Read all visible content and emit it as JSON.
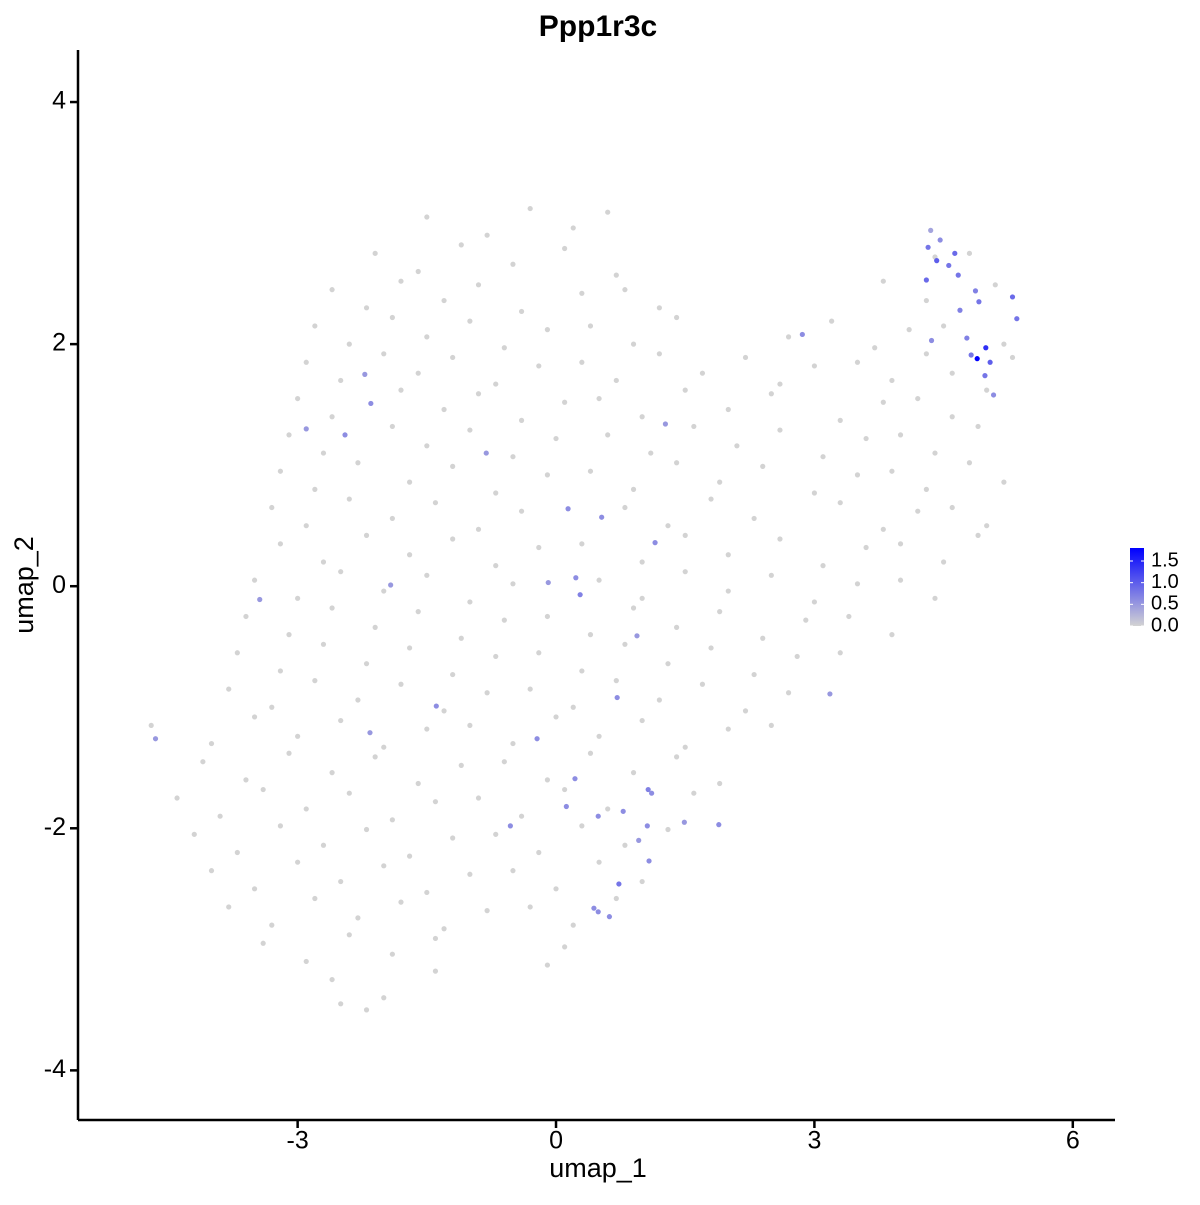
{
  "chart_data": {
    "type": "scatter",
    "title": "Ppp1r3c",
    "xlabel": "umap_1",
    "ylabel": "umap_2",
    "xlim": [
      -5.55,
      6.49
    ],
    "ylim": [
      -4.41,
      4.43
    ],
    "xticks": [
      -3,
      0,
      3,
      6
    ],
    "yticks": [
      -4,
      -2,
      0,
      2,
      4
    ],
    "color_low": "#d3d3d3",
    "color_high": "#0000ff",
    "color_lim": [
      0,
      1.8
    ],
    "color_ticks": [
      {
        "value": 0,
        "label": "0.0"
      },
      {
        "value": 0.5,
        "label": "0.5"
      },
      {
        "value": 1,
        "label": "1.0"
      },
      {
        "value": 1.5,
        "label": "1.5"
      }
    ],
    "x": [
      -1.5,
      -0.8,
      -0.3,
      0.2,
      0.6,
      -2.1,
      -1.6,
      -1.1,
      -0.5,
      0.1,
      0.7,
      4.4,
      4.8,
      -2.6,
      -2.2,
      -1.8,
      -1.3,
      -0.9,
      -0.4,
      0.3,
      0.8,
      1.2,
      3.8,
      4.3,
      5.1,
      -2.8,
      -2.4,
      -1.9,
      -1.5,
      -1.0,
      -0.6,
      -0.1,
      0.4,
      0.9,
      1.4,
      2.7,
      3.2,
      3.7,
      4.1,
      4.5,
      5.2,
      -2.9,
      -2.5,
      -2.0,
      -1.6,
      -1.2,
      -0.7,
      -0.2,
      0.3,
      0.7,
      1.2,
      1.7,
      2.2,
      2.6,
      3.0,
      3.5,
      3.9,
      4.3,
      4.6,
      5.3,
      -3.0,
      -2.6,
      -1.8,
      -1.3,
      -0.9,
      -0.4,
      0.1,
      0.5,
      1.0,
      1.5,
      2.0,
      2.5,
      3.3,
      3.8,
      4.2,
      4.6,
      5.0,
      -3.1,
      -2.7,
      -1.9,
      -1.5,
      -1.0,
      -0.5,
      0.0,
      0.6,
      1.1,
      1.6,
      2.1,
      2.6,
      3.1,
      3.6,
      4.0,
      4.4,
      4.9,
      -3.2,
      -2.8,
      -2.3,
      -1.7,
      -1.2,
      -0.7,
      -0.1,
      0.4,
      0.9,
      1.4,
      1.9,
      2.4,
      3.0,
      3.5,
      3.9,
      4.3,
      4.8,
      5.2,
      -3.3,
      -2.9,
      -2.4,
      -1.9,
      -1.4,
      -0.9,
      -0.4,
      0.8,
      1.3,
      1.8,
      2.3,
      3.3,
      3.8,
      4.2,
      4.6,
      5.0,
      -3.2,
      -2.7,
      -2.2,
      -1.7,
      -1.2,
      -0.7,
      -0.2,
      0.3,
      1.0,
      1.5,
      2.0,
      2.6,
      3.1,
      3.6,
      4.0,
      4.5,
      4.9,
      -3.5,
      -3.0,
      -2.5,
      -2.0,
      -1.5,
      -1.0,
      -0.5,
      0.5,
      1.0,
      1.5,
      2.0,
      2.5,
      3.0,
      3.5,
      4.0,
      4.4,
      -3.6,
      -3.1,
      -2.6,
      -2.1,
      -1.6,
      -1.1,
      -0.6,
      -0.1,
      0.4,
      0.9,
      1.4,
      1.9,
      2.4,
      2.9,
      3.4,
      3.9,
      -3.7,
      -3.2,
      -2.7,
      -2.2,
      -1.7,
      -1.2,
      -0.7,
      -0.2,
      0.3,
      0.8,
      1.3,
      1.8,
      2.3,
      2.8,
      3.3,
      -3.8,
      -3.3,
      -2.8,
      -2.3,
      -1.8,
      -1.3,
      -0.8,
      -0.3,
      0.2,
      0.7,
      1.2,
      1.7,
      2.2,
      2.7,
      -4.7,
      -4.0,
      -3.5,
      -3.0,
      -2.5,
      -2.0,
      -1.5,
      -1.0,
      -0.5,
      0.0,
      0.5,
      1.0,
      1.5,
      2.0,
      2.5,
      -4.1,
      -3.6,
      -3.1,
      -2.6,
      -2.1,
      -1.6,
      -1.1,
      -0.6,
      -0.1,
      0.4,
      0.9,
      1.4,
      1.9,
      -4.4,
      -3.9,
      -3.4,
      -2.9,
      -2.4,
      -1.9,
      -1.4,
      -0.9,
      -0.4,
      0.1,
      0.6,
      1.6,
      -4.2,
      -3.7,
      -3.2,
      -2.7,
      -2.2,
      -1.7,
      -1.2,
      -0.7,
      -0.2,
      0.3,
      0.8,
      1.3,
      -4.0,
      -3.5,
      -3.0,
      -2.5,
      -2.0,
      -1.5,
      -1.0,
      -0.5,
      0.0,
      0.5,
      1.0,
      -3.8,
      -3.3,
      -2.8,
      -2.3,
      -1.8,
      -1.3,
      -0.8,
      -0.3,
      0.2,
      0.7,
      -3.4,
      -2.9,
      -2.4,
      -1.9,
      -1.4,
      -0.1,
      0.1,
      -2.6,
      -2.0,
      -1.4,
      -2.5,
      -2.2,
      4.89,
      4.99,
      5.04,
      4.98,
      4.82,
      4.77,
      5.35,
      5.3,
      5.08,
      4.91,
      4.87,
      4.67,
      4.63,
      4.46,
      4.32,
      4.42,
      4.56,
      4.3,
      4.36,
      4.35,
      4.69,
      2.86,
      -2.22,
      -2.15,
      -2.45,
      -2.9,
      -0.81,
      1.27,
      0.14,
      0.53,
      1.15,
      -0.09,
      0.23,
      0.28,
      -3.44,
      -1.92,
      0.94,
      0.71,
      -1.39,
      3.18,
      -0.22,
      -2.16,
      -4.65,
      0.22,
      1.07,
      1.11,
      0.12,
      0.49,
      0.78,
      1.49,
      1.89,
      -0.53,
      1.06,
      0.96,
      1.08,
      0.73,
      0.44,
      0.62,
      0.49
    ],
    "y": [
      3.05,
      2.9,
      3.12,
      2.96,
      3.09,
      2.75,
      2.6,
      2.82,
      2.66,
      2.79,
      2.57,
      2.72,
      2.75,
      2.45,
      2.3,
      2.52,
      2.36,
      2.49,
      2.27,
      2.42,
      2.45,
      2.3,
      2.52,
      2.36,
      2.49,
      2.15,
      2.0,
      2.22,
      2.06,
      2.19,
      1.97,
      2.12,
      2.15,
      2.0,
      2.22,
      2.06,
      2.19,
      1.97,
      2.12,
      2.15,
      2.0,
      1.85,
      1.7,
      1.92,
      1.76,
      1.89,
      1.67,
      1.82,
      1.85,
      1.7,
      1.92,
      1.76,
      1.89,
      1.67,
      1.82,
      1.85,
      1.7,
      1.92,
      1.76,
      1.89,
      1.55,
      1.4,
      1.62,
      1.46,
      1.59,
      1.37,
      1.52,
      1.55,
      1.4,
      1.62,
      1.46,
      1.59,
      1.37,
      1.52,
      1.55,
      1.4,
      1.62,
      1.25,
      1.1,
      1.32,
      1.16,
      1.29,
      1.07,
      1.22,
      1.25,
      1.1,
      1.32,
      1.16,
      1.29,
      1.07,
      1.22,
      1.25,
      1.1,
      1.32,
      0.95,
      0.8,
      1.02,
      0.86,
      0.99,
      0.77,
      0.92,
      0.95,
      0.8,
      1.02,
      0.86,
      0.99,
      0.77,
      0.92,
      0.95,
      0.8,
      1.02,
      0.86,
      0.65,
      0.5,
      0.72,
      0.56,
      0.69,
      0.47,
      0.62,
      0.65,
      0.5,
      0.72,
      0.56,
      0.69,
      0.47,
      0.62,
      0.65,
      0.5,
      0.35,
      0.2,
      0.42,
      0.26,
      0.39,
      0.17,
      0.32,
      0.35,
      0.2,
      0.42,
      0.26,
      0.39,
      0.17,
      0.32,
      0.35,
      0.2,
      0.42,
      0.05,
      -0.1,
      0.12,
      -0.04,
      0.09,
      -0.13,
      0.02,
      0.05,
      -0.1,
      0.12,
      -0.04,
      0.09,
      -0.13,
      0.02,
      0.05,
      -0.1,
      -0.25,
      -0.4,
      -0.18,
      -0.34,
      -0.21,
      -0.43,
      -0.28,
      -0.25,
      -0.4,
      -0.18,
      -0.34,
      -0.21,
      -0.43,
      -0.28,
      -0.25,
      -0.4,
      -0.55,
      -0.7,
      -0.48,
      -0.64,
      -0.51,
      -0.73,
      -0.58,
      -0.55,
      -0.7,
      -0.48,
      -0.64,
      -0.51,
      -0.73,
      -0.58,
      -0.55,
      -0.85,
      -1.0,
      -0.78,
      -0.94,
      -0.81,
      -1.03,
      -0.88,
      -0.85,
      -1.0,
      -0.78,
      -0.94,
      -0.81,
      -1.03,
      -0.88,
      -1.15,
      -1.3,
      -1.08,
      -1.24,
      -1.11,
      -1.33,
      -1.18,
      -1.15,
      -1.3,
      -1.08,
      -1.24,
      -1.11,
      -1.33,
      -1.18,
      -1.15,
      -1.45,
      -1.6,
      -1.38,
      -1.54,
      -1.41,
      -1.63,
      -1.48,
      -1.45,
      -1.6,
      -1.38,
      -1.54,
      -1.41,
      -1.63,
      -1.75,
      -1.9,
      -1.68,
      -1.84,
      -1.71,
      -1.93,
      -1.78,
      -1.75,
      -1.9,
      -1.68,
      -1.84,
      -1.71,
      -2.05,
      -2.2,
      -1.98,
      -2.14,
      -2.01,
      -2.23,
      -2.08,
      -2.05,
      -2.2,
      -1.98,
      -2.14,
      -2.01,
      -2.35,
      -2.5,
      -2.28,
      -2.44,
      -2.31,
      -2.53,
      -2.38,
      -2.35,
      -2.5,
      -2.28,
      -2.44,
      -2.65,
      -2.8,
      -2.58,
      -2.74,
      -2.61,
      -2.83,
      -2.68,
      -2.65,
      -2.8,
      -2.58,
      -2.95,
      -3.1,
      -2.88,
      -3.04,
      -2.91,
      -3.13,
      -2.98,
      -3.25,
      -3.4,
      -3.18,
      -3.45,
      -3.5,
      1.88,
      1.97,
      1.85,
      1.74,
      1.91,
      2.05,
      2.21,
      2.39,
      1.58,
      2.35,
      2.44,
      2.57,
      2.75,
      2.86,
      2.8,
      2.69,
      2.65,
      2.53,
      2.03,
      2.94,
      2.28,
      2.08,
      1.75,
      1.51,
      1.25,
      1.3,
      1.1,
      1.34,
      0.64,
      0.57,
      0.36,
      0.03,
      0.07,
      -0.07,
      -0.11,
      0.01,
      -0.41,
      -0.92,
      -0.99,
      -0.89,
      -1.26,
      -1.21,
      -1.26,
      -1.59,
      -1.68,
      -1.71,
      -1.82,
      -1.9,
      -1.86,
      -1.95,
      -1.97,
      -1.98,
      -1.98,
      -2.1,
      -2.27,
      -2.46,
      -2.66,
      -2.73,
      -2.69
    ],
    "expression": [
      0,
      0,
      0,
      0,
      0,
      0,
      0,
      0,
      0,
      0,
      0,
      0,
      0,
      0,
      0,
      0,
      0,
      0,
      0,
      0,
      0,
      0,
      0,
      0,
      0,
      0,
      0,
      0,
      0,
      0,
      0,
      0,
      0,
      0,
      0,
      0,
      0,
      0,
      0,
      0,
      0,
      0,
      0,
      0,
      0,
      0,
      0,
      0,
      0,
      0,
      0,
      0,
      0,
      0,
      0,
      0,
      0,
      0,
      0,
      0,
      0,
      0,
      0,
      0,
      0,
      0,
      0,
      0,
      0,
      0,
      0,
      0,
      0,
      0,
      0,
      0,
      0,
      0,
      0,
      0,
      0,
      0,
      0,
      0,
      0,
      0,
      0,
      0,
      0,
      0,
      0,
      0,
      0,
      0,
      0,
      0,
      0,
      0,
      0,
      0,
      0,
      0,
      0,
      0,
      0,
      0,
      0,
      0,
      0,
      0,
      0,
      0,
      0,
      0,
      0,
      0,
      0,
      0,
      0,
      0,
      0,
      0,
      0,
      0,
      0,
      0,
      0,
      0,
      0,
      0,
      0,
      0,
      0,
      0,
      0,
      0,
      0,
      0,
      0,
      0,
      0,
      0,
      0,
      0,
      0,
      0,
      0,
      0,
      0,
      0,
      0,
      0,
      0,
      0,
      0,
      0,
      0,
      0,
      0,
      0,
      0,
      0,
      0,
      0,
      0,
      0,
      0,
      0,
      0,
      0,
      0,
      0,
      0,
      0,
      0,
      0,
      0,
      0,
      0,
      0,
      0,
      0,
      0,
      0,
      0,
      0,
      0,
      0,
      0,
      0,
      0,
      0,
      0,
      0,
      0,
      0,
      0,
      0,
      0,
      0,
      0,
      0,
      0,
      0,
      0,
      0,
      0,
      0,
      0,
      0,
      0,
      0,
      0,
      0,
      0,
      0,
      0,
      0,
      0,
      0,
      0,
      0,
      0,
      0,
      0,
      0,
      0,
      0,
      0,
      0,
      0,
      0,
      0,
      0,
      0,
      0,
      0,
      0,
      0,
      0,
      0,
      0,
      0,
      0,
      0,
      0,
      0,
      0,
      0,
      0,
      0,
      0,
      0,
      0,
      0,
      0,
      0,
      0,
      0,
      0,
      0,
      0,
      0,
      0,
      0,
      0,
      0,
      0,
      0,
      0,
      0,
      0,
      0,
      0,
      0,
      0,
      0,
      0,
      0,
      0,
      0,
      0,
      0,
      0,
      0,
      0,
      0,
      0,
      0,
      0,
      0,
      1.8,
      1.4,
      1.0,
      0.8,
      0.8,
      0.7,
      0.8,
      0.9,
      0.6,
      0.8,
      0.7,
      0.8,
      0.9,
      0.6,
      0.8,
      1.0,
      0.8,
      0.9,
      0.6,
      0.4,
      0.7,
      0.6,
      0.5,
      0.6,
      0.6,
      0.5,
      0.5,
      0.5,
      0.6,
      0.6,
      0.6,
      0.5,
      0.6,
      0.7,
      0.5,
      0.5,
      0.5,
      0.6,
      0.6,
      0.5,
      0.6,
      0.5,
      0.5,
      0.6,
      0.7,
      0.6,
      0.6,
      0.6,
      0.6,
      0.5,
      0.6,
      0.6,
      0.6,
      0.5,
      0.6,
      0.8,
      0.6,
      0.6,
      0.6
    ]
  }
}
